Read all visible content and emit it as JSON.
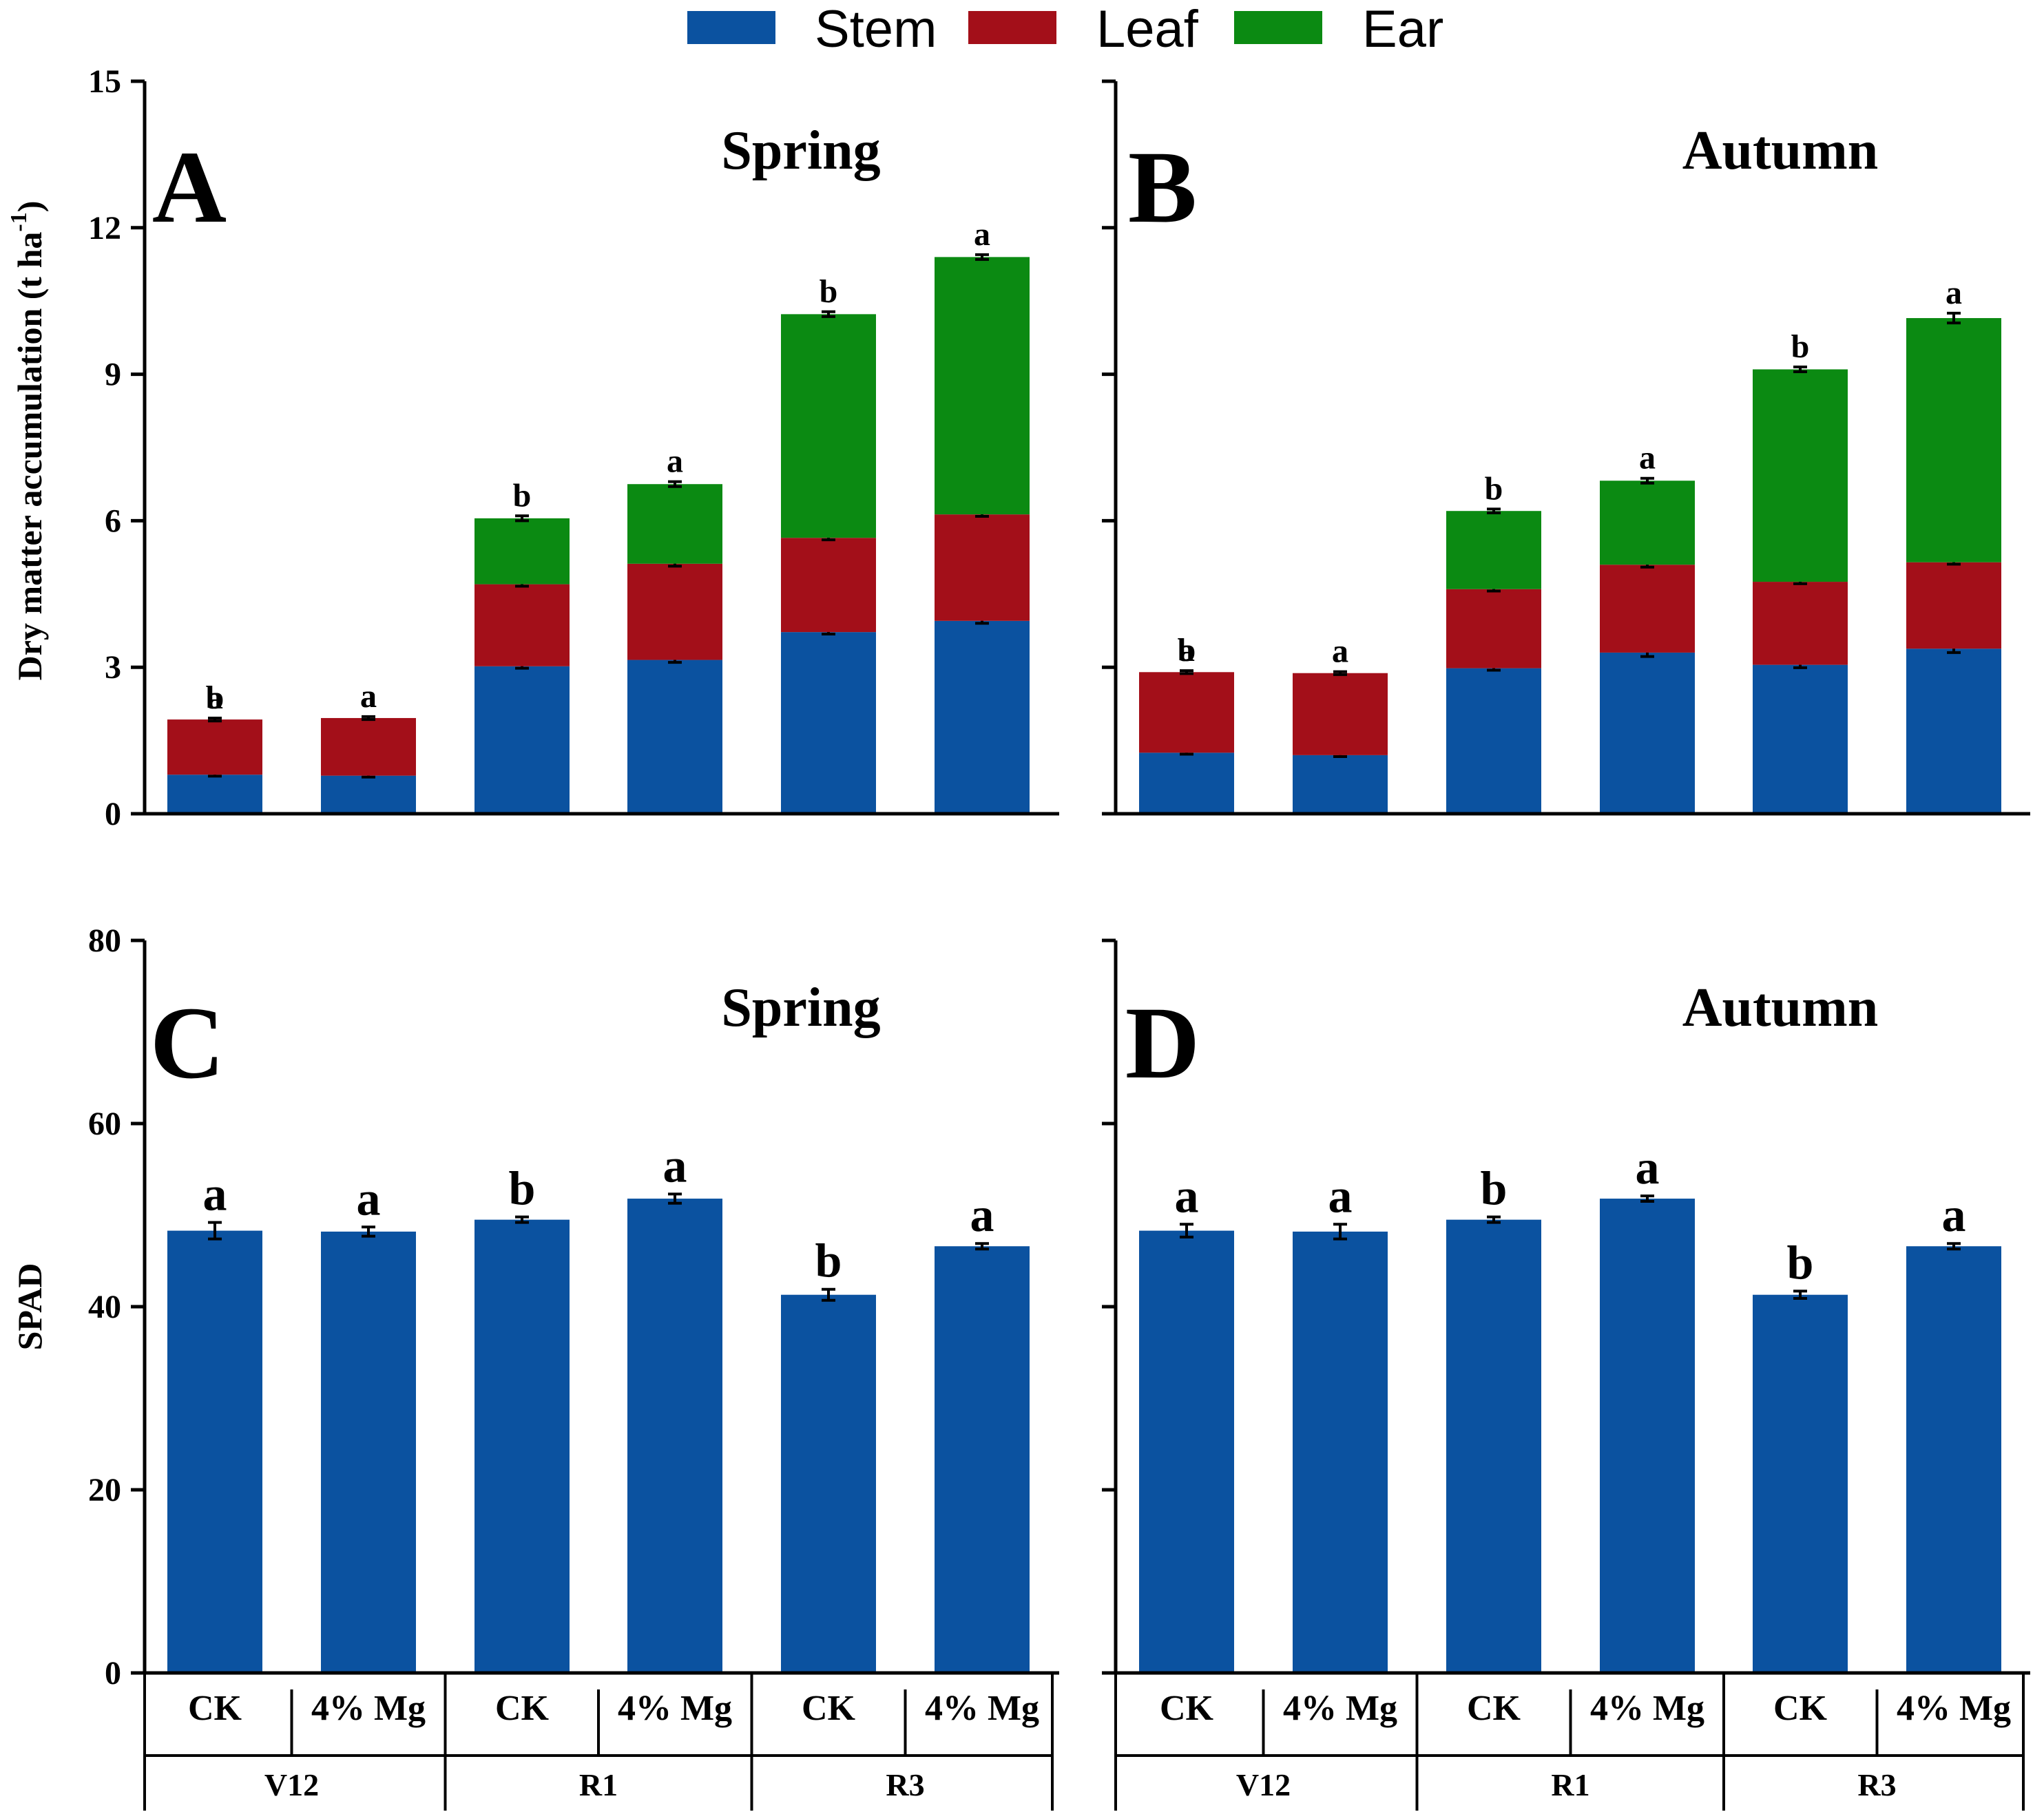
{
  "legend": [
    {
      "label": "Stem",
      "color": "#0b52a0"
    },
    {
      "label": "Leaf",
      "color": "#a30f19"
    },
    {
      "label": "Ear",
      "color": "#0b8a12"
    }
  ],
  "chart_data": [
    {
      "id": "A",
      "type": "bar",
      "stacked": true,
      "panel_letter": "A",
      "title": "Spring",
      "ylabel": "Dry matter accumulation (t ha-1)",
      "ylabel_main": "Dry matter accumulation (t ha",
      "ylabel_sup": "-1",
      "ylabel_end": ")",
      "ylim": [
        0,
        15
      ],
      "yticks": [
        0,
        3,
        6,
        9,
        12,
        15
      ],
      "categories": [
        "CK",
        "4% Mg",
        "CK",
        "4% Mg",
        "CK",
        "4% Mg"
      ],
      "groups": [
        "V12",
        "R1",
        "R3"
      ],
      "series": [
        {
          "name": "Stem",
          "values": [
            0.8,
            0.78,
            3.02,
            3.15,
            3.72,
            3.95
          ],
          "errors": [
            0.03,
            0.03,
            0.04,
            0.05,
            0.04,
            0.05
          ],
          "letters": [
            "",
            "",
            "b",
            "a",
            "b",
            "a"
          ]
        },
        {
          "name": "Leaf",
          "values": [
            1.13,
            1.18,
            1.68,
            1.97,
            1.93,
            2.18
          ],
          "errors": [
            0.03,
            0.03,
            0.04,
            0.05,
            0.04,
            0.04
          ],
          "letters": [
            "a",
            "a",
            "b",
            "a",
            "b",
            "a"
          ]
        },
        {
          "name": "Ear",
          "values": [
            0,
            0,
            1.35,
            1.63,
            4.58,
            5.27
          ],
          "errors": [
            0,
            0,
            0.05,
            0.05,
            0.05,
            0.05
          ],
          "letters": [
            "",
            "",
            "b",
            "a",
            "b",
            "a"
          ]
        }
      ],
      "total_letters": [
        "b",
        "a",
        "",
        "",
        "",
        ""
      ]
    },
    {
      "id": "B",
      "type": "bar",
      "stacked": true,
      "panel_letter": "B",
      "title": "Autumn",
      "ylim": [
        0,
        15
      ],
      "yticks": [
        0,
        3,
        6,
        9,
        12,
        15
      ],
      "categories": [
        "CK",
        "4% Mg",
        "CK",
        "4% Mg",
        "CK",
        "4% Mg"
      ],
      "groups": [
        "V12",
        "R1",
        "R3"
      ],
      "series": [
        {
          "name": "Stem",
          "values": [
            1.25,
            1.2,
            2.98,
            3.3,
            3.05,
            3.38
          ],
          "errors": [
            0.03,
            0.03,
            0.04,
            0.08,
            0.06,
            0.08
          ],
          "letters": [
            "",
            "",
            "b",
            "a",
            "b",
            "a"
          ]
        },
        {
          "name": "Leaf",
          "values": [
            1.65,
            1.68,
            1.62,
            1.8,
            1.7,
            1.77
          ],
          "errors": [
            0.03,
            0.03,
            0.04,
            0.05,
            0.04,
            0.04
          ],
          "letters": [
            "a",
            "a",
            "b",
            "a",
            "b",
            "a"
          ]
        },
        {
          "name": "Ear",
          "values": [
            0,
            0,
            1.6,
            1.72,
            4.35,
            5.0
          ],
          "errors": [
            0,
            0,
            0.04,
            0.05,
            0.05,
            0.1
          ],
          "letters": [
            "",
            "",
            "b",
            "a",
            "b",
            "a"
          ]
        }
      ],
      "total_letters": [
        "b",
        "a",
        "",
        "",
        "",
        ""
      ]
    },
    {
      "id": "C",
      "type": "bar",
      "stacked": false,
      "panel_letter": "C",
      "title": "Spring",
      "ylabel": "SPAD",
      "ylim": [
        0,
        80
      ],
      "yticks": [
        0,
        20,
        40,
        60,
        80
      ],
      "categories": [
        "CK",
        "4% Mg",
        "CK",
        "4% Mg",
        "CK",
        "4% Mg"
      ],
      "groups": [
        "V12",
        "R1",
        "R3"
      ],
      "series": [
        {
          "name": "SPAD",
          "values": [
            48.3,
            48.2,
            49.5,
            51.8,
            41.3,
            46.6
          ],
          "errors": [
            0.9,
            0.5,
            0.3,
            0.5,
            0.6,
            0.3
          ],
          "letters": [
            "a",
            "a",
            "b",
            "a",
            "b",
            "a"
          ]
        }
      ]
    },
    {
      "id": "D",
      "type": "bar",
      "stacked": false,
      "panel_letter": "D",
      "title": "Autumn",
      "ylim": [
        0,
        80
      ],
      "yticks": [
        0,
        20,
        40,
        60,
        80
      ],
      "categories": [
        "CK",
        "4% Mg",
        "CK",
        "4% Mg",
        "CK",
        "4% Mg"
      ],
      "groups": [
        "V12",
        "R1",
        "R3"
      ],
      "series": [
        {
          "name": "SPAD",
          "values": [
            48.3,
            48.2,
            49.5,
            51.8,
            41.3,
            46.6
          ],
          "errors": [
            0.7,
            0.8,
            0.3,
            0.3,
            0.4,
            0.3
          ],
          "letters": [
            "a",
            "a",
            "b",
            "a",
            "b",
            "a"
          ]
        }
      ]
    }
  ]
}
